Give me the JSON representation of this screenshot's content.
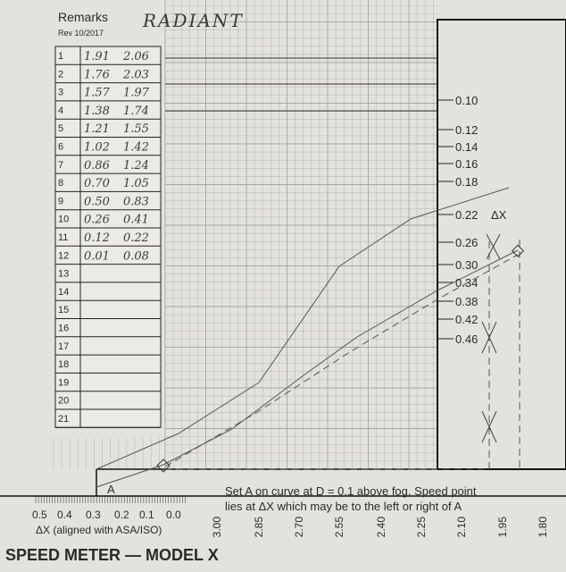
{
  "header": {
    "title": "Remarks",
    "note": "RADIANT",
    "revision": "Rev 10/2017"
  },
  "table": {
    "rows": [
      {
        "number": "1",
        "low": "1.91",
        "high": "2.06"
      },
      {
        "number": "2",
        "low": "1.76",
        "high": "2.03"
      },
      {
        "number": "3",
        "low": "1.57",
        "high": "1.97"
      },
      {
        "number": "4",
        "low": "1.38",
        "high": "1.74"
      },
      {
        "number": "5",
        "low": "1.21",
        "high": "1.55"
      },
      {
        "number": "6",
        "low": "1.02",
        "high": "1.42"
      },
      {
        "number": "7",
        "low": "0.86",
        "high": "1.24"
      },
      {
        "number": "8",
        "low": "0.70",
        "high": "1.05"
      },
      {
        "number": "9",
        "low": "0.50",
        "high": "0.83"
      },
      {
        "number": "10",
        "low": "0.26",
        "high": "0.41"
      },
      {
        "number": "11",
        "low": "0.12",
        "high": "0.22"
      },
      {
        "number": "12",
        "low": "0.01",
        "high": "0.08"
      },
      {
        "number": "13"
      },
      {
        "number": "14"
      },
      {
        "number": "15"
      },
      {
        "number": "16"
      },
      {
        "number": "17"
      },
      {
        "number": "18"
      },
      {
        "number": "19"
      },
      {
        "number": "20"
      },
      {
        "number": "21"
      }
    ]
  },
  "right_scale": {
    "labels": [
      "0.10",
      "0.12",
      "0.14",
      "0.16",
      "0.18",
      "0.22",
      "0.26",
      "0.30",
      "0.34",
      "0.38",
      "0.42",
      "0.46"
    ],
    "symbol": "ΔX"
  },
  "bottom_scale": {
    "labels": [
      "3.00",
      "2.85",
      "2.70",
      "2.55",
      "2.40",
      "2.25",
      "2.10",
      "1.95",
      "1.80"
    ]
  },
  "left_scale": {
    "labels": [
      "0.5",
      "0.4",
      "0.3",
      "0.2",
      "0.1",
      "0.0"
    ],
    "caption": "ΔX (aligned with ASA/ISO)"
  },
  "instructions": [
    "Set A on curve at D = 0.1 above fog. Speed point",
    "lies at ΔX which may be to the left or right of A"
  ],
  "footer": {
    "title": "SPEED METER — MODEL X"
  }
}
